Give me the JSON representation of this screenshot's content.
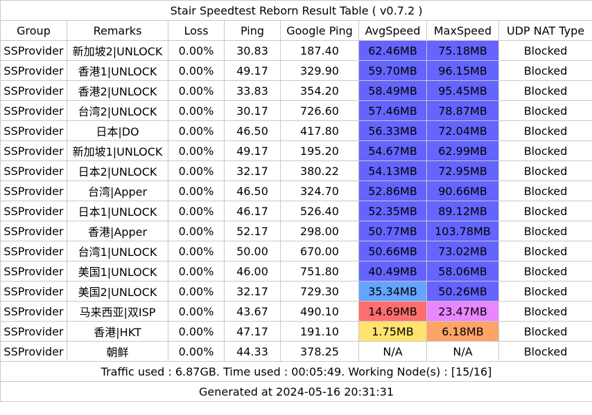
{
  "title": "Stair Speedtest Reborn Result Table ( v0.7.2 )",
  "columns": [
    "Group",
    "Remarks",
    "Loss",
    "Ping",
    "Google Ping",
    "AvgSpeed",
    "MaxSpeed",
    "UDP NAT Type"
  ],
  "rows": [
    {
      "group": "SSProvider",
      "remarks": "新加坡2|UNLOCK",
      "loss": "0.00%",
      "ping": "30.83",
      "google_ping": "187.40",
      "avg_speed": "62.46MB",
      "max_speed": "75.18MB",
      "udp_nat": "Blocked",
      "avg_color": "#6464ff",
      "max_color": "#6464ff"
    },
    {
      "group": "SSProvider",
      "remarks": "香港1|UNLOCK",
      "loss": "0.00%",
      "ping": "49.17",
      "google_ping": "329.90",
      "avg_speed": "59.70MB",
      "max_speed": "96.15MB",
      "udp_nat": "Blocked",
      "avg_color": "#6464ff",
      "max_color": "#6464ff"
    },
    {
      "group": "SSProvider",
      "remarks": "香港2|UNLOCK",
      "loss": "0.00%",
      "ping": "33.83",
      "google_ping": "354.20",
      "avg_speed": "58.49MB",
      "max_speed": "95.45MB",
      "udp_nat": "Blocked",
      "avg_color": "#6464ff",
      "max_color": "#6464ff"
    },
    {
      "group": "SSProvider",
      "remarks": "台湾2|UNLOCK",
      "loss": "0.00%",
      "ping": "30.17",
      "google_ping": "726.60",
      "avg_speed": "57.46MB",
      "max_speed": "78.87MB",
      "udp_nat": "Blocked",
      "avg_color": "#6464ff",
      "max_color": "#6464ff"
    },
    {
      "group": "SSProvider",
      "remarks": "日本|DO",
      "loss": "0.00%",
      "ping": "46.50",
      "google_ping": "417.80",
      "avg_speed": "56.33MB",
      "max_speed": "72.04MB",
      "udp_nat": "Blocked",
      "avg_color": "#6464ff",
      "max_color": "#6464ff"
    },
    {
      "group": "SSProvider",
      "remarks": "新加坡1|UNLOCK",
      "loss": "0.00%",
      "ping": "49.17",
      "google_ping": "195.20",
      "avg_speed": "54.67MB",
      "max_speed": "62.99MB",
      "udp_nat": "Blocked",
      "avg_color": "#6464ff",
      "max_color": "#6464ff"
    },
    {
      "group": "SSProvider",
      "remarks": "日本2|UNLOCK",
      "loss": "0.00%",
      "ping": "32.17",
      "google_ping": "380.22",
      "avg_speed": "54.13MB",
      "max_speed": "72.95MB",
      "udp_nat": "Blocked",
      "avg_color": "#6464ff",
      "max_color": "#6464ff"
    },
    {
      "group": "SSProvider",
      "remarks": "台湾|Apper",
      "loss": "0.00%",
      "ping": "46.50",
      "google_ping": "324.70",
      "avg_speed": "52.86MB",
      "max_speed": "90.66MB",
      "udp_nat": "Blocked",
      "avg_color": "#6464ff",
      "max_color": "#6464ff"
    },
    {
      "group": "SSProvider",
      "remarks": "日本1|UNLOCK",
      "loss": "0.00%",
      "ping": "46.17",
      "google_ping": "526.40",
      "avg_speed": "52.35MB",
      "max_speed": "89.12MB",
      "udp_nat": "Blocked",
      "avg_color": "#6464ff",
      "max_color": "#6464ff"
    },
    {
      "group": "SSProvider",
      "remarks": "香港|Apper",
      "loss": "0.00%",
      "ping": "52.17",
      "google_ping": "298.00",
      "avg_speed": "50.77MB",
      "max_speed": "103.78MB",
      "udp_nat": "Blocked",
      "avg_color": "#6464ff",
      "max_color": "#6464ff"
    },
    {
      "group": "SSProvider",
      "remarks": "台湾1|UNLOCK",
      "loss": "0.00%",
      "ping": "50.00",
      "google_ping": "670.00",
      "avg_speed": "50.66MB",
      "max_speed": "73.02MB",
      "udp_nat": "Blocked",
      "avg_color": "#6464ff",
      "max_color": "#6464ff"
    },
    {
      "group": "SSProvider",
      "remarks": "美国1|UNLOCK",
      "loss": "0.00%",
      "ping": "46.00",
      "google_ping": "751.80",
      "avg_speed": "40.49MB",
      "max_speed": "58.06MB",
      "udp_nat": "Blocked",
      "avg_color": "#6464ff",
      "max_color": "#6464ff"
    },
    {
      "group": "SSProvider",
      "remarks": "美国2|UNLOCK",
      "loss": "0.00%",
      "ping": "32.17",
      "google_ping": "729.30",
      "avg_speed": "35.34MB",
      "max_speed": "50.26MB",
      "udp_nat": "Blocked",
      "avg_color": "#66a4ff",
      "max_color": "#6464ff"
    },
    {
      "group": "SSProvider",
      "remarks": "马来西亚|双ISP",
      "loss": "0.00%",
      "ping": "43.67",
      "google_ping": "490.10",
      "avg_speed": "14.69MB",
      "max_speed": "23.47MB",
      "udp_nat": "Blocked",
      "avg_color": "#ff6e6e",
      "max_color": "#e887ff"
    },
    {
      "group": "SSProvider",
      "remarks": "香港|HKT",
      "loss": "0.00%",
      "ping": "47.17",
      "google_ping": "191.10",
      "avg_speed": "1.75MB",
      "max_speed": "6.18MB",
      "udp_nat": "Blocked",
      "avg_color": "#ffe270",
      "max_color": "#ffa366"
    },
    {
      "group": "SSProvider",
      "remarks": "朝鲜",
      "loss": "0.00%",
      "ping": "44.33",
      "google_ping": "378.25",
      "avg_speed": "N/A",
      "max_speed": "N/A",
      "udp_nat": "Blocked",
      "avg_color": "#ffffff",
      "max_color": "#ffffff"
    }
  ],
  "footer": {
    "traffic": "Traffic used : 6.87GB. Time used : 00:05:49. Working Node(s) : [15/16]",
    "generated": "Generated at 2024-05-16 20:31:31"
  }
}
